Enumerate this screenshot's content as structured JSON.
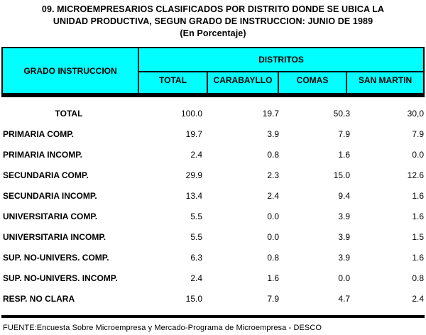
{
  "title": {
    "line1": "09. MICROEMPRESARIOS CLASIFICADOS POR DISTRITO DONDE SE UBICA LA",
    "line2": "UNIDAD PRODUCTIVA, SEGUN GRADO DE INSTRUCCION: JUNIO DE 1989",
    "line3": "(En Porcentaje)"
  },
  "colors": {
    "header_bg": "#00FFFF",
    "border": "#000000",
    "text": "#000000",
    "page_bg": "#FFFFFF"
  },
  "table": {
    "row_header": "GRADO INSTRUCCION",
    "group_header": "DISTRITOS",
    "columns": [
      "TOTAL",
      "CARABAYLLO",
      "COMAS",
      "SAN MARTIN"
    ],
    "rows": [
      {
        "label": "TOTAL",
        "center": true,
        "values": [
          "100.0",
          "19.7",
          "50.3",
          "30,0"
        ]
      },
      {
        "label": "PRIMARIA COMP.",
        "center": false,
        "values": [
          "19.7",
          "3.9",
          "7.9",
          "7.9"
        ]
      },
      {
        "label": "PRIMARIA INCOMP.",
        "center": false,
        "values": [
          "2.4",
          "0.8",
          "1.6",
          "0.0"
        ]
      },
      {
        "label": "SECUNDARIA COMP.",
        "center": false,
        "values": [
          "29.9",
          "2.3",
          "15.0",
          "12.6"
        ]
      },
      {
        "label": "SECUNDARIA INCOMP.",
        "center": false,
        "values": [
          "13.4",
          "2.4",
          "9.4",
          "1.6"
        ]
      },
      {
        "label": "UNIVERSITARIA COMP.",
        "center": false,
        "values": [
          "5.5",
          "0.0",
          "3.9",
          "1.6"
        ]
      },
      {
        "label": "UNIVERSITARIA INCOMP.",
        "center": false,
        "values": [
          "5.5",
          "0.0",
          "3.9",
          "1.5"
        ]
      },
      {
        "label": "SUP. NO-UNIVERS. COMP.",
        "center": false,
        "values": [
          "6.3",
          "0.8",
          "3.9",
          "1.6"
        ]
      },
      {
        "label": "SUP. NO-UNIVERS. INCOMP.",
        "center": false,
        "values": [
          "2.4",
          "1.6",
          "0.0",
          "0.8"
        ]
      },
      {
        "label": "RESP. NO CLARA",
        "center": false,
        "values": [
          "15.0",
          "7.9",
          "4.7",
          "2.4"
        ]
      }
    ]
  },
  "footer": {
    "source": "FUENTE:Encuesta Sobre Microempresa y Mercado-Programa de Microempresa - DESCO"
  }
}
